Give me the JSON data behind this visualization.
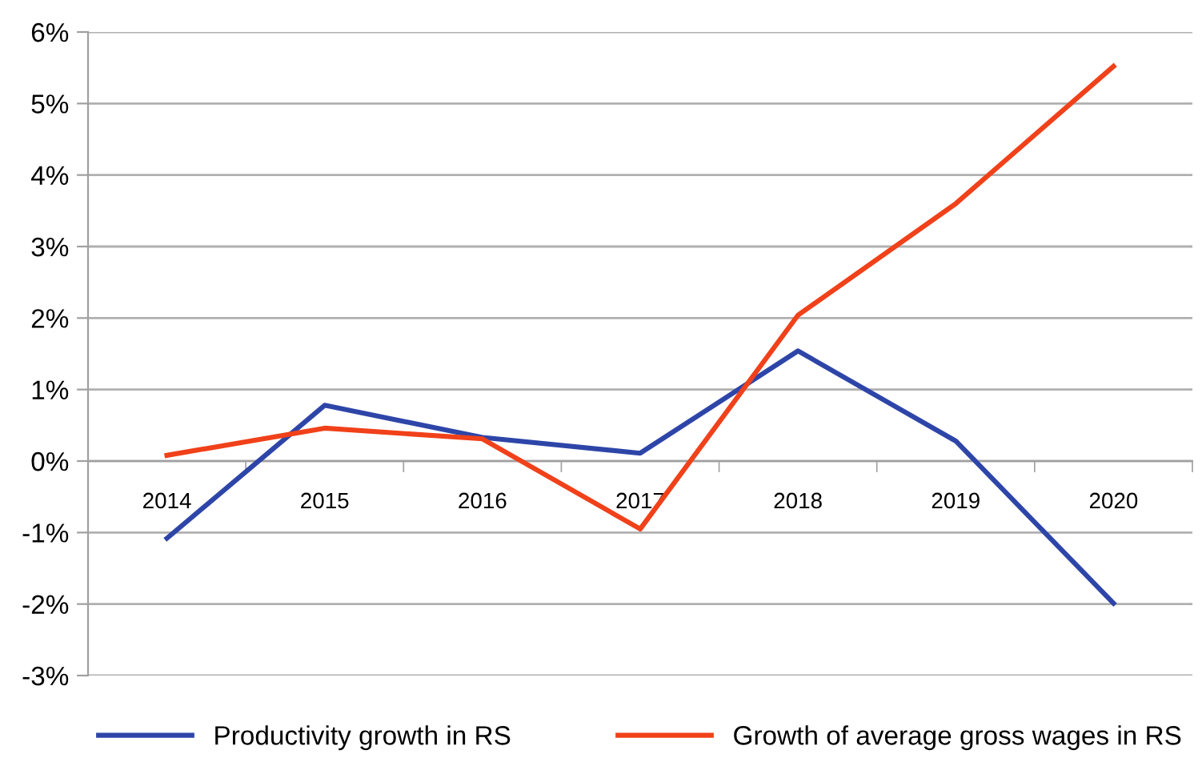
{
  "chart_data": {
    "type": "line",
    "categories": [
      "2014",
      "2015",
      "2016",
      "2017",
      "2018",
      "2019",
      "2020"
    ],
    "series": [
      {
        "name": "Productivity growth in RS",
        "color": "#2e45a8",
        "values": [
          -1.08,
          0.78,
          0.33,
          0.11,
          1.54,
          0.28,
          -1.99
        ]
      },
      {
        "name": "Growth of average gross wages in RS",
        "color": "#f0411a",
        "values": [
          0.08,
          0.46,
          0.31,
          -0.95,
          2.04,
          3.6,
          5.52
        ]
      }
    ],
    "ylim": [
      -3,
      6
    ],
    "yticks": [
      {
        "value": -3,
        "label": "-3%"
      },
      {
        "value": -2,
        "label": "-2%"
      },
      {
        "value": -1,
        "label": "-1%"
      },
      {
        "value": 0,
        "label": "0%"
      },
      {
        "value": 1,
        "label": "1%"
      },
      {
        "value": 2,
        "label": "2%"
      },
      {
        "value": 3,
        "label": "3%"
      },
      {
        "value": 4,
        "label": "4%"
      },
      {
        "value": 5,
        "label": "5%"
      },
      {
        "value": 6,
        "label": "6%"
      }
    ],
    "grid": "y",
    "legend": "bottom",
    "marker": "none",
    "line_style": "solid"
  }
}
